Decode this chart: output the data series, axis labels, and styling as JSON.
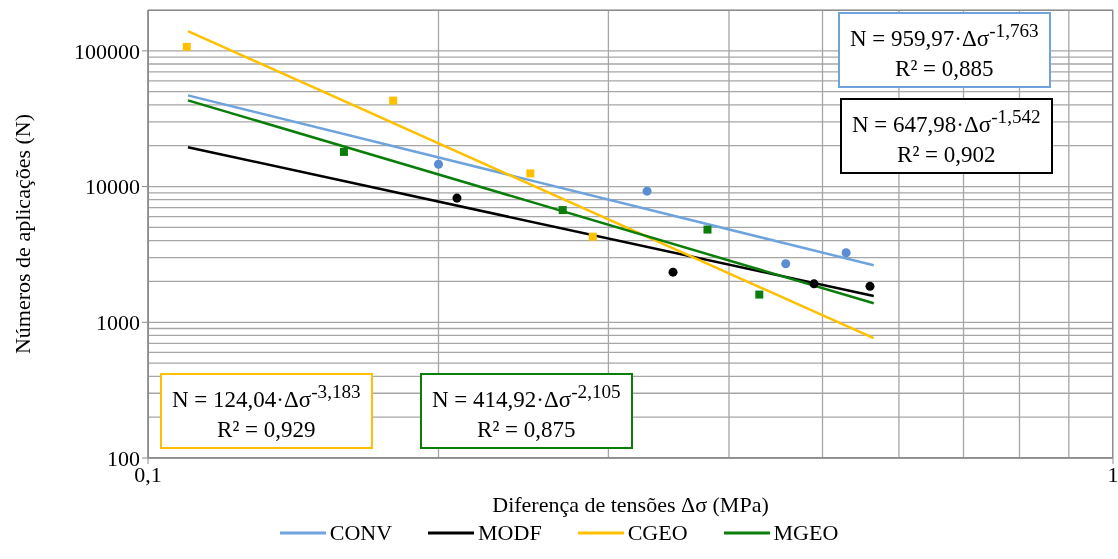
{
  "chart_data": {
    "type": "scatter",
    "xlabel": "Diferença de tensões Δσ (MPa)",
    "ylabel": "Números de  aplicações (N)",
    "log": "xy",
    "xlim": [
      0.1,
      1
    ],
    "xticks": [
      {
        "value": 0.1,
        "label": "0,1"
      },
      1
    ],
    "ylim": [
      100,
      200000
    ],
    "yticks": [
      100,
      1000,
      10000,
      100000
    ],
    "grid": true,
    "legend": "bottom",
    "series": [
      {
        "marker": "circle",
        "color": "#5b8ed0",
        "x": [
          0.2,
          0.329,
          0.458,
          0.529
        ],
        "values": [
          14600,
          9250,
          2700,
          3250
        ]
      },
      {
        "marker": "circle",
        "color": "#000000",
        "x": [
          0.209,
          0.35,
          0.49,
          0.56
        ],
        "values": [
          8220,
          2340,
          1920,
          1840
        ]
      },
      {
        "marker": "square",
        "color": "#ffc000",
        "x": [
          0.1097,
          0.1795,
          0.249,
          0.289
        ],
        "values": [
          107000,
          43000,
          12500,
          4270
        ]
      },
      {
        "marker": "square",
        "color": "#0a7d0a",
        "x": [
          0.1596,
          0.269,
          0.38,
          0.43
        ],
        "values": [
          18000,
          6710,
          4820,
          1600
        ]
      },
      {
        "type": "line",
        "name": "CONV",
        "color": "#6fa3dc",
        "x": [
          0.11,
          0.565
        ],
        "values": [
          47000,
          2630
        ]
      },
      {
        "type": "line",
        "name": "MODF",
        "color": "#000000",
        "x": [
          0.11,
          0.565
        ],
        "values": [
          19500,
          1560
        ]
      },
      {
        "type": "line",
        "name": "CGEO",
        "color": "#ffc000",
        "x": [
          0.11,
          0.565
        ],
        "values": [
          140000,
          763
        ]
      },
      {
        "type": "line",
        "name": "MGEO",
        "color": "#0a7d0a",
        "x": [
          0.11,
          0.565
        ],
        "values": [
          43200,
          1380
        ]
      }
    ],
    "annotations": [
      "N = 959,97·Δσ$^{-1,763}$\nR² = 0,885",
      "N = 647,98·Δσ$^{-1,542}$\nR² = 0,902",
      "N = 124,04·Δσ$^{-3,183}$\nR² = 0,929",
      "N = 414,92·Δσ$^{-2,105}$\nR² = 0,875"
    ]
  }
}
